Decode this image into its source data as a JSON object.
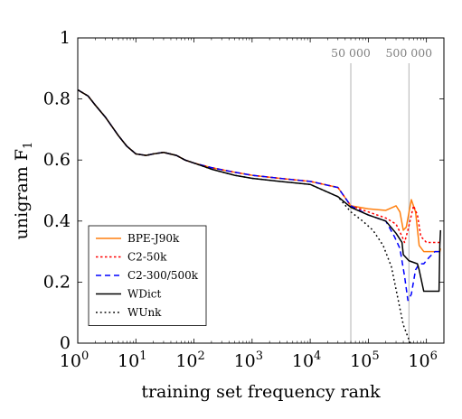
{
  "chart_data": {
    "type": "line",
    "xlabel": "training set frequency rank",
    "ylabel": "unigram F",
    "ylabel_subscript": "1",
    "x_scale": "log",
    "xlim": [
      1,
      2000000
    ],
    "ylim": [
      0,
      1
    ],
    "x_ticks": [
      {
        "value": 1,
        "base": "10",
        "exp": "0"
      },
      {
        "value": 10,
        "base": "10",
        "exp": "1"
      },
      {
        "value": 100,
        "base": "10",
        "exp": "2"
      },
      {
        "value": 1000,
        "base": "10",
        "exp": "3"
      },
      {
        "value": 10000,
        "base": "10",
        "exp": "4"
      },
      {
        "value": 100000,
        "base": "10",
        "exp": "5"
      },
      {
        "value": 1000000,
        "base": "10",
        "exp": "6"
      }
    ],
    "y_ticks": [
      {
        "value": 0,
        "label": "0"
      },
      {
        "value": 0.2,
        "label": "0.2"
      },
      {
        "value": 0.4,
        "label": "0.4"
      },
      {
        "value": 0.6,
        "label": "0.6"
      },
      {
        "value": 0.8,
        "label": "0.8"
      },
      {
        "value": 1,
        "label": "1"
      }
    ],
    "vlines": [
      {
        "x": 50000,
        "label": "50 000",
        "color": "#b3b3b3"
      },
      {
        "x": 500000,
        "label": "500 000",
        "color": "#b3b3b3"
      }
    ],
    "legend_position": "bottom-left",
    "series": [
      {
        "name": "BPE-J90k",
        "color": "#ff7f0e",
        "dash": "solid",
        "points": [
          [
            1,
            0.83
          ],
          [
            1.5,
            0.81
          ],
          [
            2,
            0.78
          ],
          [
            3,
            0.74
          ],
          [
            5,
            0.68
          ],
          [
            7,
            0.645
          ],
          [
            10,
            0.62
          ],
          [
            15,
            0.615
          ],
          [
            20,
            0.62
          ],
          [
            30,
            0.625
          ],
          [
            50,
            0.615
          ],
          [
            70,
            0.6
          ],
          [
            100,
            0.59
          ],
          [
            200,
            0.575
          ],
          [
            500,
            0.56
          ],
          [
            1000,
            0.55
          ],
          [
            3000,
            0.54
          ],
          [
            10000,
            0.53
          ],
          [
            30000,
            0.51
          ],
          [
            50000,
            0.45
          ],
          [
            100000,
            0.44
          ],
          [
            200000,
            0.435
          ],
          [
            300000,
            0.45
          ],
          [
            350000,
            0.43
          ],
          [
            400000,
            0.37
          ],
          [
            450000,
            0.38
          ],
          [
            550000,
            0.47
          ],
          [
            650000,
            0.43
          ],
          [
            750000,
            0.32
          ],
          [
            900000,
            0.3
          ],
          [
            1300000,
            0.3
          ],
          [
            1700000,
            0.3
          ],
          [
            1750000,
            0.31
          ]
        ]
      },
      {
        "name": "C2-50k",
        "color": "#ff0000",
        "dash": "dotted",
        "points": [
          [
            1,
            0.83
          ],
          [
            1.5,
            0.81
          ],
          [
            2,
            0.78
          ],
          [
            3,
            0.74
          ],
          [
            5,
            0.68
          ],
          [
            7,
            0.645
          ],
          [
            10,
            0.62
          ],
          [
            15,
            0.615
          ],
          [
            20,
            0.62
          ],
          [
            30,
            0.625
          ],
          [
            50,
            0.615
          ],
          [
            70,
            0.6
          ],
          [
            100,
            0.59
          ],
          [
            200,
            0.575
          ],
          [
            500,
            0.56
          ],
          [
            1000,
            0.55
          ],
          [
            3000,
            0.54
          ],
          [
            10000,
            0.53
          ],
          [
            30000,
            0.51
          ],
          [
            50000,
            0.45
          ],
          [
            100000,
            0.43
          ],
          [
            200000,
            0.41
          ],
          [
            300000,
            0.39
          ],
          [
            380000,
            0.35
          ],
          [
            420000,
            0.33
          ],
          [
            480000,
            0.37
          ],
          [
            600000,
            0.45
          ],
          [
            700000,
            0.42
          ],
          [
            800000,
            0.35
          ],
          [
            1000000,
            0.33
          ],
          [
            1300000,
            0.33
          ],
          [
            1750000,
            0.33
          ]
        ]
      },
      {
        "name": "C2-300/500k",
        "color": "#0000ff",
        "dash": "dashed",
        "points": [
          [
            1,
            0.83
          ],
          [
            1.5,
            0.81
          ],
          [
            2,
            0.78
          ],
          [
            3,
            0.74
          ],
          [
            5,
            0.68
          ],
          [
            7,
            0.645
          ],
          [
            10,
            0.62
          ],
          [
            15,
            0.615
          ],
          [
            20,
            0.62
          ],
          [
            30,
            0.625
          ],
          [
            50,
            0.615
          ],
          [
            70,
            0.6
          ],
          [
            100,
            0.59
          ],
          [
            200,
            0.575
          ],
          [
            500,
            0.56
          ],
          [
            1000,
            0.55
          ],
          [
            3000,
            0.54
          ],
          [
            10000,
            0.53
          ],
          [
            30000,
            0.51
          ],
          [
            50000,
            0.45
          ],
          [
            100000,
            0.42
          ],
          [
            200000,
            0.4
          ],
          [
            280000,
            0.35
          ],
          [
            350000,
            0.31
          ],
          [
            420000,
            0.22
          ],
          [
            480000,
            0.14
          ],
          [
            550000,
            0.16
          ],
          [
            650000,
            0.24
          ],
          [
            750000,
            0.26
          ],
          [
            900000,
            0.26
          ],
          [
            1100000,
            0.28
          ],
          [
            1400000,
            0.3
          ],
          [
            1750000,
            0.3
          ]
        ]
      },
      {
        "name": "WDict",
        "color": "#000000",
        "dash": "solid",
        "points": [
          [
            1,
            0.83
          ],
          [
            1.5,
            0.81
          ],
          [
            2,
            0.78
          ],
          [
            3,
            0.74
          ],
          [
            5,
            0.68
          ],
          [
            7,
            0.645
          ],
          [
            10,
            0.62
          ],
          [
            15,
            0.615
          ],
          [
            20,
            0.62
          ],
          [
            30,
            0.625
          ],
          [
            50,
            0.615
          ],
          [
            70,
            0.6
          ],
          [
            100,
            0.59
          ],
          [
            200,
            0.57
          ],
          [
            500,
            0.55
          ],
          [
            1000,
            0.54
          ],
          [
            3000,
            0.53
          ],
          [
            10000,
            0.52
          ],
          [
            30000,
            0.48
          ],
          [
            50000,
            0.445
          ],
          [
            100000,
            0.42
          ],
          [
            200000,
            0.4
          ],
          [
            300000,
            0.36
          ],
          [
            380000,
            0.33
          ],
          [
            400000,
            0.29
          ],
          [
            500000,
            0.27
          ],
          [
            700000,
            0.26
          ],
          [
            750000,
            0.24
          ],
          [
            900000,
            0.17
          ],
          [
            1300000,
            0.17
          ],
          [
            1650000,
            0.17
          ],
          [
            1700000,
            0.32
          ],
          [
            1750000,
            0.37
          ]
        ]
      },
      {
        "name": "WUnk",
        "color": "#000000",
        "dash": "densely-dotted",
        "points": [
          [
            1,
            0.83
          ],
          [
            1.5,
            0.81
          ],
          [
            2,
            0.78
          ],
          [
            3,
            0.74
          ],
          [
            5,
            0.68
          ],
          [
            7,
            0.645
          ],
          [
            10,
            0.62
          ],
          [
            15,
            0.615
          ],
          [
            20,
            0.62
          ],
          [
            30,
            0.625
          ],
          [
            50,
            0.615
          ],
          [
            70,
            0.6
          ],
          [
            100,
            0.59
          ],
          [
            200,
            0.57
          ],
          [
            500,
            0.55
          ],
          [
            1000,
            0.54
          ],
          [
            3000,
            0.53
          ],
          [
            10000,
            0.52
          ],
          [
            30000,
            0.48
          ],
          [
            50000,
            0.43
          ],
          [
            80000,
            0.4
          ],
          [
            120000,
            0.37
          ],
          [
            180000,
            0.32
          ],
          [
            250000,
            0.25
          ],
          [
            320000,
            0.15
          ],
          [
            400000,
            0.06
          ],
          [
            480000,
            0.02
          ],
          [
            530000,
            0
          ]
        ]
      }
    ]
  }
}
